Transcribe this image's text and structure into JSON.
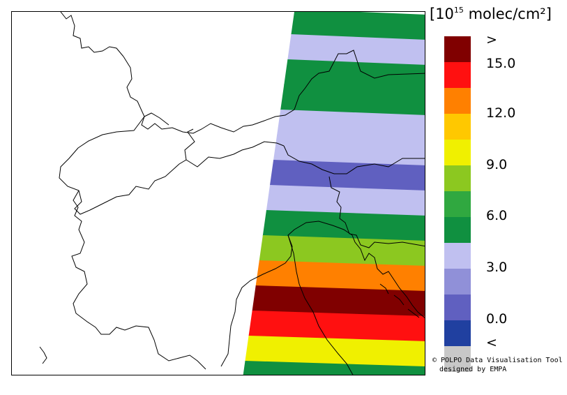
{
  "unit": {
    "prefix": "[10",
    "exponent": "15",
    "suffix": " molec/cm²]"
  },
  "legend": {
    "colors": [
      "#c8c8c8",
      "#2040a0",
      "#6060c0",
      "#9090d8",
      "#c0c0f0",
      "#109040",
      "#30a840",
      "#8cc820",
      "#f0f000",
      "#ffc800",
      "#ff8000",
      "#ff1010",
      "#800000"
    ],
    "labels": [
      ">",
      "15.0",
      "12.0",
      "9.0",
      "6.0",
      "3.0",
      "0.0",
      "<"
    ]
  },
  "credit": {
    "line1": "© POLPO Data Visualisation Tool",
    "line2": "designed by EMPA"
  },
  "map": {
    "swath_rows": [
      {
        "color_index": 5
      },
      {
        "color_index": 4
      },
      {
        "color_index": 5
      },
      {
        "color_index": 5
      },
      {
        "color_index": 4
      },
      {
        "color_index": 4
      },
      {
        "color_index": 2
      },
      {
        "color_index": 4
      },
      {
        "color_index": 5
      },
      {
        "color_index": 7
      },
      {
        "color_index": 10
      },
      {
        "color_index": 12
      },
      {
        "color_index": 11
      },
      {
        "color_index": 8
      },
      {
        "color_index": 5
      }
    ]
  }
}
